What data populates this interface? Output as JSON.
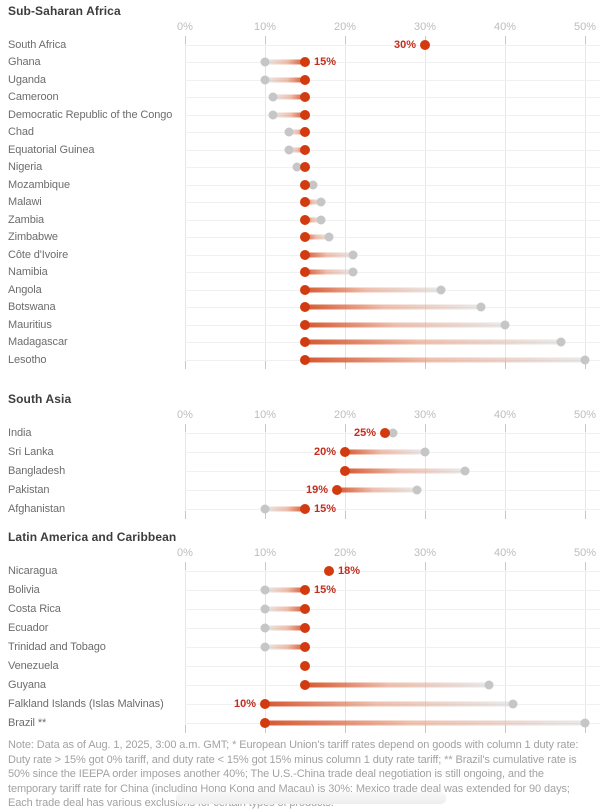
{
  "page": {
    "note": "Note: Data as of Aug. 1, 2025, 3:00 a.m. GMT; * European Union's tariff rates depend on goods with column 1 duty rate: Duty rate > 15% got 0% tariff, and duty rate < 15% got 15% minus column 1 duty rate tariff; ** Brazil's cumulative rate is 50% since the IEEPA order imposes another 40%; The U.S.-China trade deal negotiation is still ongoing, and the temporary tariff rate for China (including Hong Kong and Macau) is 30%; Mexico trade deal was extended for 90 days; Each trade deal has various exclusions for certain types of products.",
    "colors": {
      "new_rate_dot": "#d23b0f",
      "old_rate_dot": "#c6c6c6",
      "value_label_text": "#c22e1e",
      "gridline": "#e6e6e6",
      "row_line": "#f0f0f0",
      "section_title_text": "#3d3d3d",
      "country_text": "#6d6d6d",
      "axis_text": "#bdbdbd",
      "note_text": "#a2a2a2"
    }
  },
  "chart_data": [
    {
      "type": "dumbbell",
      "title": "Sub-Saharan Africa",
      "axis_ticks": [
        "0%",
        "10%",
        "20%",
        "30%",
        "40%",
        "50%"
      ],
      "axis_range": [
        0,
        50
      ],
      "grid": true,
      "legend": "red dot = new tariff rate, gray dot = previous rate",
      "rows": [
        {
          "label": "South Africa",
          "new": 30,
          "old": null,
          "value_label": "30%",
          "label_side": "left"
        },
        {
          "label": "Ghana",
          "new": 15,
          "old": 10,
          "value_label": "15%",
          "label_side": "right"
        },
        {
          "label": "Uganda",
          "new": 15,
          "old": 10,
          "value_label": null,
          "label_side": null
        },
        {
          "label": "Cameroon",
          "new": 15,
          "old": 11,
          "value_label": null,
          "label_side": null
        },
        {
          "label": "Democratic Republic of the Congo",
          "new": 15,
          "old": 11,
          "value_label": null,
          "label_side": null
        },
        {
          "label": "Chad",
          "new": 15,
          "old": 13,
          "value_label": null,
          "label_side": null
        },
        {
          "label": "Equatorial Guinea",
          "new": 15,
          "old": 13,
          "value_label": null,
          "label_side": null
        },
        {
          "label": "Nigeria",
          "new": 15,
          "old": 14,
          "value_label": null,
          "label_side": null
        },
        {
          "label": "Mozambique",
          "new": 15,
          "old": 16,
          "value_label": null,
          "label_side": null
        },
        {
          "label": "Malawi",
          "new": 15,
          "old": 17,
          "value_label": null,
          "label_side": null
        },
        {
          "label": "Zambia",
          "new": 15,
          "old": 17,
          "value_label": null,
          "label_side": null
        },
        {
          "label": "Zimbabwe",
          "new": 15,
          "old": 18,
          "value_label": null,
          "label_side": null
        },
        {
          "label": "Côte d'Ivoire",
          "new": 15,
          "old": 21,
          "value_label": null,
          "label_side": null
        },
        {
          "label": "Namibia",
          "new": 15,
          "old": 21,
          "value_label": null,
          "label_side": null
        },
        {
          "label": "Angola",
          "new": 15,
          "old": 32,
          "value_label": null,
          "label_side": null
        },
        {
          "label": "Botswana",
          "new": 15,
          "old": 37,
          "value_label": null,
          "label_side": null
        },
        {
          "label": "Mauritius",
          "new": 15,
          "old": 40,
          "value_label": null,
          "label_side": null
        },
        {
          "label": "Madagascar",
          "new": 15,
          "old": 47,
          "value_label": null,
          "label_side": null
        },
        {
          "label": "Lesotho",
          "new": 15,
          "old": 50,
          "value_label": null,
          "label_side": null
        }
      ]
    },
    {
      "type": "dumbbell",
      "title": "South Asia",
      "axis_ticks": [
        "0%",
        "10%",
        "20%",
        "30%",
        "40%",
        "50%"
      ],
      "axis_range": [
        0,
        50
      ],
      "grid": true,
      "rows": [
        {
          "label": "India",
          "new": 25,
          "old": 26,
          "value_label": "25%",
          "label_side": "left"
        },
        {
          "label": "Sri Lanka",
          "new": 20,
          "old": 30,
          "value_label": "20%",
          "label_side": "left"
        },
        {
          "label": "Bangladesh",
          "new": 20,
          "old": 35,
          "value_label": null,
          "label_side": null
        },
        {
          "label": "Pakistan",
          "new": 19,
          "old": 29,
          "value_label": "19%",
          "label_side": "left"
        },
        {
          "label": "Afghanistan",
          "new": 15,
          "old": 10,
          "value_label": "15%",
          "label_side": "right"
        }
      ]
    },
    {
      "type": "dumbbell",
      "title": "Latin America and Caribbean",
      "axis_ticks": [
        "0%",
        "10%",
        "20%",
        "30%",
        "40%",
        "50%"
      ],
      "axis_range": [
        0,
        50
      ],
      "grid": true,
      "rows": [
        {
          "label": "Nicaragua",
          "new": 18,
          "old": null,
          "value_label": "18%",
          "label_side": "right"
        },
        {
          "label": "Bolivia",
          "new": 15,
          "old": 10,
          "value_label": "15%",
          "label_side": "right"
        },
        {
          "label": "Costa Rica",
          "new": 15,
          "old": 10,
          "value_label": null,
          "label_side": null
        },
        {
          "label": "Ecuador",
          "new": 15,
          "old": 10,
          "value_label": null,
          "label_side": null
        },
        {
          "label": "Trinidad and Tobago",
          "new": 15,
          "old": 10,
          "value_label": null,
          "label_side": null
        },
        {
          "label": "Venezuela",
          "new": 15,
          "old": null,
          "value_label": null,
          "label_side": null
        },
        {
          "label": "Guyana",
          "new": 15,
          "old": 38,
          "value_label": null,
          "label_side": null
        },
        {
          "label": "Falkland Islands (Islas Malvinas)",
          "new": 10,
          "old": 41,
          "value_label": "10%",
          "label_side": "left"
        },
        {
          "label": "Brazil **",
          "new": 10,
          "old": 50,
          "value_label": null,
          "label_side": null
        }
      ]
    }
  ]
}
